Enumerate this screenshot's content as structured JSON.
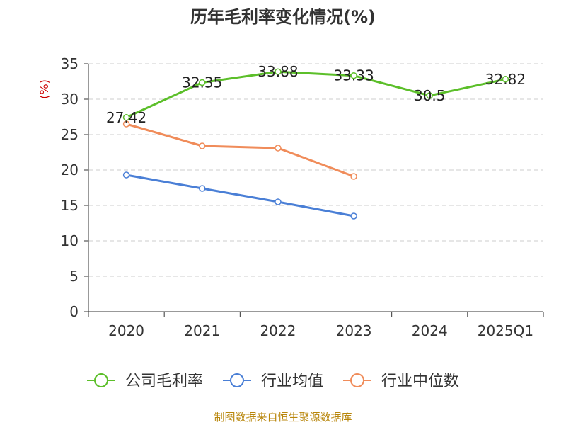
{
  "chart_data": {
    "type": "line",
    "title": "历年毛利率变化情况(%)",
    "ylabel": "(%)",
    "xlabel": "",
    "categories": [
      "2020",
      "2021",
      "2022",
      "2023",
      "2024",
      "2025Q1"
    ],
    "ylim": [
      0,
      35
    ],
    "yticks": [
      0,
      5,
      10,
      15,
      20,
      25,
      30,
      35
    ],
    "grid": true,
    "legend_position": "bottom",
    "series": [
      {
        "name": "公司毛利率",
        "color": "#5cbf2a",
        "values": [
          27.42,
          32.35,
          33.88,
          33.33,
          30.5,
          32.82
        ],
        "labels": [
          "27.42",
          "32.35",
          "33.88",
          "33.33",
          "30.5",
          "32.82"
        ]
      },
      {
        "name": "行业均值",
        "color": "#4a7fd6",
        "values": [
          19.3,
          17.4,
          15.5,
          13.5,
          null,
          null
        ],
        "labels": []
      },
      {
        "name": "行业中位数",
        "color": "#f08c5a",
        "values": [
          26.5,
          23.4,
          23.1,
          19.1,
          null,
          null
        ],
        "labels": []
      }
    ]
  },
  "source": "制图数据来自恒生聚源数据库"
}
